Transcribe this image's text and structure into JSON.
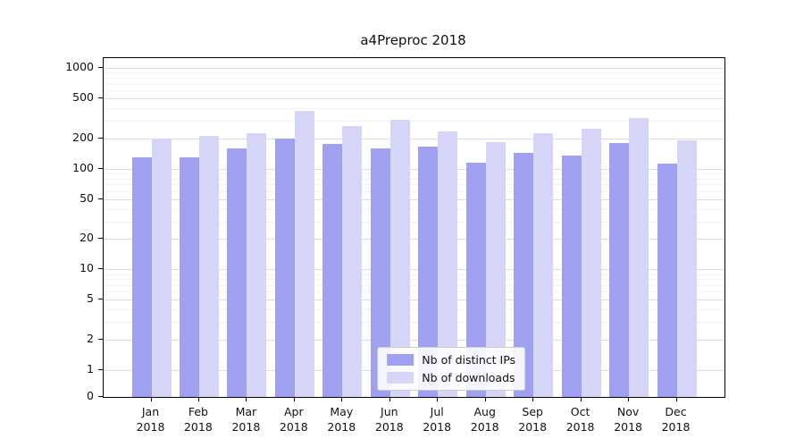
{
  "chart_data": {
    "type": "bar",
    "title": "a4Preproc 2018",
    "categories": [
      "Jan",
      "Feb",
      "Mar",
      "Apr",
      "May",
      "Jun",
      "Jul",
      "Aug",
      "Sep",
      "Oct",
      "Nov",
      "Dec"
    ],
    "year_label": "2018",
    "series": [
      {
        "name": "Nb of distinct IPs",
        "color": "#a0a0f0",
        "values": [
          130,
          130,
          160,
          200,
          175,
          160,
          165,
          115,
          145,
          135,
          180,
          112
        ]
      },
      {
        "name": "Nb of downloads",
        "color": "#d5d5f8",
        "values": [
          200,
          210,
          225,
          375,
          265,
          305,
          235,
          185,
          225,
          250,
          320,
          190
        ]
      }
    ],
    "yscale": "symlog",
    "y_ticks": [
      0,
      1,
      2,
      5,
      10,
      20,
      50,
      100,
      200,
      500,
      1000
    ],
    "y_minor_ticks": [
      3,
      4,
      6,
      7,
      8,
      9,
      30,
      40,
      60,
      70,
      80,
      90,
      300,
      400,
      600,
      700,
      800,
      900
    ],
    "ylim": [
      0,
      1100
    ],
    "xlabel": "",
    "ylabel": "",
    "grid": true,
    "legend_position": "lower center"
  }
}
